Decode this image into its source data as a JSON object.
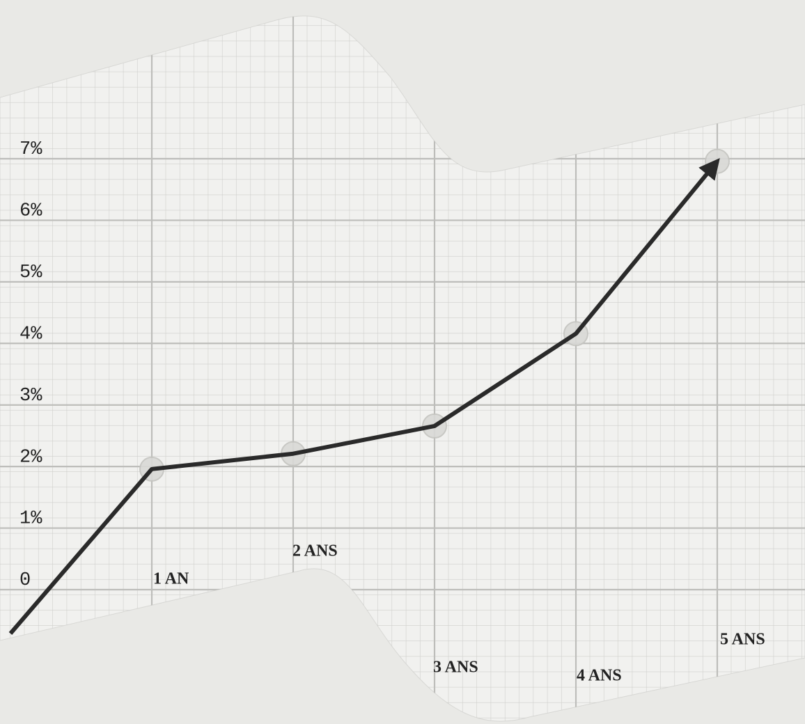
{
  "chart_data": {
    "type": "line",
    "categories": [
      null,
      "1 AN",
      "2 ANS",
      "3 ANS",
      "4 ANS",
      "5 ANS"
    ],
    "values": [
      0,
      1.8,
      2.05,
      2.5,
      4.0,
      6.8
    ],
    "color": "#2a2a2a",
    "ylim": [
      0,
      7
    ],
    "yticks": [
      0,
      {
        "value": 1,
        "label": "1%"
      },
      {
        "value": 2,
        "label": "2%"
      },
      {
        "value": 3,
        "label": "3%"
      },
      {
        "value": 4,
        "label": "4%"
      },
      {
        "value": 5,
        "label": "5%"
      },
      {
        "value": 6,
        "label": "6%"
      },
      {
        "value": 7,
        "label": "7%"
      }
    ],
    "grid": true
  }
}
